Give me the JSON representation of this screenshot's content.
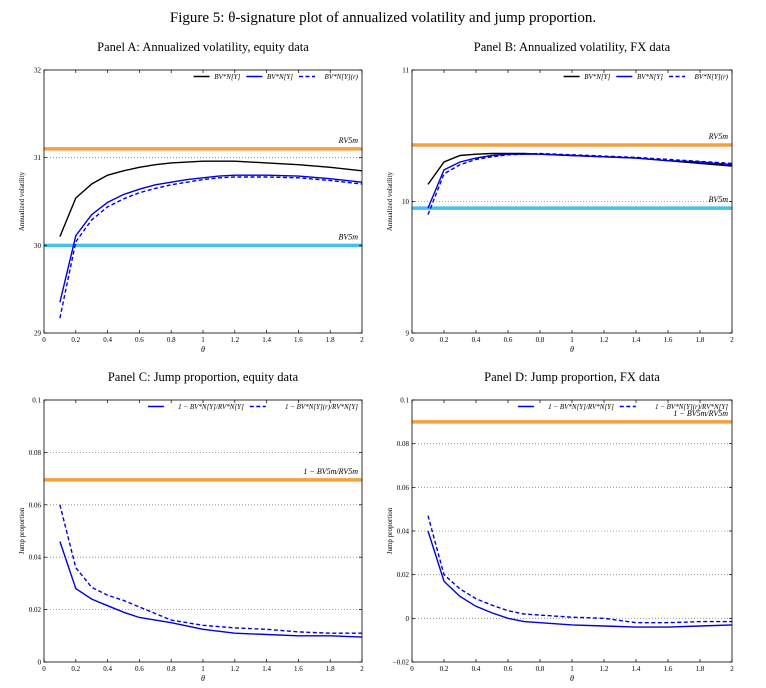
{
  "figure_title": "Figure 5: θ-signature plot of annualized volatility and jump proportion.",
  "chart_data": [
    {
      "type": "line",
      "title": "Panel A: Annualized volatility, equity data",
      "xlabel": "θ",
      "ylabel": "Annualized volatility",
      "xlim": [
        0,
        2
      ],
      "ylim": [
        29,
        32
      ],
      "xticks": [
        "0",
        "0.2",
        "0.4",
        "0.6",
        "0.8",
        "1",
        "1.2",
        "1.4",
        "1.6",
        "1.8",
        "2"
      ],
      "yticks": [
        "29",
        "30",
        "31",
        "32"
      ],
      "grid": "dotted-horizontal",
      "legend_position": "top-right",
      "series": [
        {
          "name": "BV*N[Y]",
          "color": "#000000",
          "style": "solid",
          "x": [
            0.1,
            0.2,
            0.3,
            0.4,
            0.5,
            0.6,
            0.7,
            0.8,
            0.9,
            1.0,
            1.1,
            1.2,
            1.4,
            1.6,
            1.8,
            2.0
          ],
          "y": [
            30.1,
            30.54,
            30.7,
            30.8,
            30.85,
            30.89,
            30.92,
            30.94,
            30.95,
            30.96,
            30.96,
            30.96,
            30.94,
            30.92,
            30.89,
            30.85
          ]
        },
        {
          "name": "BV*N[Y]",
          "color": "#0000dd",
          "style": "solid",
          "x": [
            0.1,
            0.2,
            0.3,
            0.4,
            0.5,
            0.6,
            0.7,
            0.8,
            0.9,
            1.0,
            1.1,
            1.2,
            1.4,
            1.6,
            1.8,
            2.0
          ],
          "y": [
            29.35,
            30.11,
            30.35,
            30.49,
            30.58,
            30.64,
            30.69,
            30.72,
            30.75,
            30.77,
            30.79,
            30.8,
            30.8,
            30.79,
            30.76,
            30.72
          ]
        },
        {
          "name": "BV*N[Y](r)",
          "color": "#0000dd",
          "style": "dashed",
          "x": [
            0.1,
            0.2,
            0.3,
            0.4,
            0.5,
            0.6,
            0.7,
            0.8,
            0.9,
            1.0,
            1.1,
            1.2,
            1.4,
            1.6,
            1.8,
            2.0
          ],
          "y": [
            29.17,
            30.04,
            30.29,
            30.44,
            30.53,
            30.6,
            30.65,
            30.69,
            30.72,
            30.75,
            30.77,
            30.78,
            30.78,
            30.77,
            30.74,
            30.7
          ]
        }
      ],
      "hlines": [
        {
          "y": 31.1,
          "color": "#f5a040",
          "label": "RV5m"
        },
        {
          "y": 30.0,
          "color": "#45c0ea",
          "label": "BV5m"
        }
      ]
    },
    {
      "type": "line",
      "title": "Panel B: Annualized volatility, FX data",
      "xlabel": "θ",
      "ylabel": "Annualized volatility",
      "xlim": [
        0,
        2
      ],
      "ylim": [
        9,
        11
      ],
      "xticks": [
        "0",
        "0.2",
        "0.4",
        "0.6",
        "0.8",
        "1",
        "1.2",
        "1.4",
        "1.6",
        "1.8",
        "2"
      ],
      "yticks": [
        "9",
        "10",
        "11"
      ],
      "grid": "dotted-horizontal",
      "legend_position": "top-right",
      "series": [
        {
          "name": "BV*N[Y]",
          "color": "#000000",
          "style": "solid",
          "x": [
            0.1,
            0.2,
            0.3,
            0.4,
            0.5,
            0.6,
            0.7,
            0.8,
            1.0,
            1.2,
            1.4,
            1.6,
            1.8,
            2.0
          ],
          "y": [
            10.13,
            10.3,
            10.35,
            10.36,
            10.365,
            10.365,
            10.365,
            10.36,
            10.35,
            10.34,
            10.33,
            10.31,
            10.29,
            10.27
          ]
        },
        {
          "name": "BV*N[Y]",
          "color": "#0000dd",
          "style": "solid",
          "x": [
            0.1,
            0.2,
            0.3,
            0.4,
            0.5,
            0.6,
            0.7,
            0.8,
            1.0,
            1.2,
            1.4,
            1.6,
            1.8,
            2.0
          ],
          "y": [
            9.95,
            10.24,
            10.3,
            10.33,
            10.35,
            10.36,
            10.36,
            10.36,
            10.35,
            10.34,
            10.33,
            10.31,
            10.3,
            10.28
          ]
        },
        {
          "name": "BV*N[Y](r)",
          "color": "#0000dd",
          "style": "dashed",
          "x": [
            0.1,
            0.2,
            0.3,
            0.4,
            0.5,
            0.6,
            0.7,
            0.8,
            1.0,
            1.2,
            1.4,
            1.6,
            1.8,
            2.0
          ],
          "y": [
            9.9,
            10.21,
            10.28,
            10.32,
            10.34,
            10.355,
            10.36,
            10.365,
            10.355,
            10.345,
            10.335,
            10.32,
            10.305,
            10.29
          ]
        }
      ],
      "hlines": [
        {
          "y": 10.43,
          "color": "#f5a040",
          "label": "RV5m"
        },
        {
          "y": 9.95,
          "color": "#45c0ea",
          "label": "BV5m"
        }
      ]
    },
    {
      "type": "line",
      "title": "Panel C: Jump proportion, equity data",
      "xlabel": "θ",
      "ylabel": "Jump proportion",
      "xlim": [
        0,
        2
      ],
      "ylim": [
        0,
        0.1
      ],
      "xticks": [
        "0",
        "0.2",
        "0.4",
        "0.6",
        "0.8",
        "1",
        "1.2",
        "1.4",
        "1.6",
        "1.8",
        "2"
      ],
      "yticks": [
        "0",
        "0.02",
        "0.04",
        "0.06",
        "0.08",
        "0.1"
      ],
      "grid": "dotted-horizontal",
      "legend_position": "top-right",
      "series": [
        {
          "name": "1 − BV*N[Y]/RV*N[Y]",
          "color": "#0000dd",
          "style": "solid",
          "x": [
            0.1,
            0.2,
            0.3,
            0.4,
            0.5,
            0.6,
            0.7,
            0.8,
            1.0,
            1.2,
            1.4,
            1.6,
            1.8,
            2.0
          ],
          "y": [
            0.046,
            0.028,
            0.024,
            0.0215,
            0.019,
            0.017,
            0.016,
            0.015,
            0.0125,
            0.011,
            0.0105,
            0.01,
            0.01,
            0.0095
          ]
        },
        {
          "name": "1 − BV*N[Y](r)/RV*N[Y]",
          "color": "#0000dd",
          "style": "dashed",
          "x": [
            0.1,
            0.2,
            0.3,
            0.4,
            0.5,
            0.6,
            0.7,
            0.8,
            1.0,
            1.2,
            1.4,
            1.6,
            1.8,
            2.0
          ],
          "y": [
            0.06,
            0.036,
            0.0285,
            0.0255,
            0.0235,
            0.021,
            0.0185,
            0.016,
            0.014,
            0.013,
            0.0125,
            0.0115,
            0.011,
            0.011
          ]
        }
      ],
      "hlines": [
        {
          "y": 0.0695,
          "color": "#f5a040",
          "label": "1 − BV5m/RV5m"
        }
      ]
    },
    {
      "type": "line",
      "title": "Panel D: Jump proportion, FX data",
      "xlabel": "θ",
      "ylabel": "Jump proportion",
      "xlim": [
        0,
        2
      ],
      "ylim": [
        -0.02,
        0.1
      ],
      "xticks": [
        "0",
        "0.2",
        "0.4",
        "0.6",
        "0.8",
        "1",
        "1.2",
        "1.4",
        "1.6",
        "1.8",
        "2"
      ],
      "yticks": [
        "−0.02",
        "0",
        "0.02",
        "0.04",
        "0.06",
        "0.08",
        "0.1"
      ],
      "grid": "dotted-horizontal",
      "legend_position": "top-right",
      "series": [
        {
          "name": "1 − BV*N[Y]/RV*N[Y]",
          "color": "#0000dd",
          "style": "solid",
          "x": [
            0.1,
            0.2,
            0.3,
            0.4,
            0.5,
            0.6,
            0.7,
            0.8,
            1.0,
            1.2,
            1.4,
            1.6,
            1.8,
            2.0
          ],
          "y": [
            0.04,
            0.017,
            0.01,
            0.0055,
            0.0025,
            0.0,
            -0.0015,
            -0.002,
            -0.003,
            -0.0035,
            -0.004,
            -0.004,
            -0.0035,
            -0.003
          ]
        },
        {
          "name": "1 − BV*N[Y](r)/RV*N[Y]",
          "color": "#0000dd",
          "style": "dashed",
          "x": [
            0.1,
            0.2,
            0.3,
            0.4,
            0.5,
            0.6,
            0.7,
            0.8,
            1.0,
            1.2,
            1.4,
            1.6,
            1.8,
            2.0
          ],
          "y": [
            0.047,
            0.02,
            0.0135,
            0.009,
            0.006,
            0.0035,
            0.002,
            0.0015,
            0.0005,
            0.0,
            -0.002,
            -0.002,
            -0.0015,
            -0.0015
          ]
        }
      ],
      "hlines": [
        {
          "y": 0.09,
          "color": "#f5a040",
          "label": "1 − BV5m/RV5m"
        }
      ]
    }
  ]
}
